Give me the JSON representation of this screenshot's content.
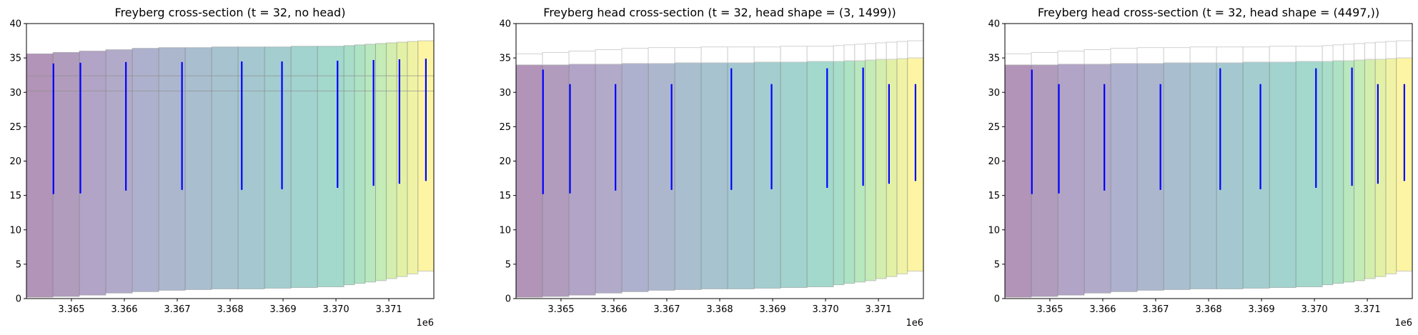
{
  "chart_data": [
    {
      "type": "area",
      "title": "Freyberg cross-section (t = 32, no head)",
      "xlabel": "",
      "ylabel": "",
      "x_offset_label": "1e6",
      "xlim": [
        3.36415,
        3.37185
      ],
      "ylim": [
        0,
        40
      ],
      "xticks": [
        3.365,
        3.366,
        3.367,
        3.368,
        3.369,
        3.37,
        3.371
      ],
      "xtick_labels": [
        "3.365",
        "3.366",
        "3.367",
        "3.368",
        "3.369",
        "3.370",
        "3.371"
      ],
      "yticks": [
        0,
        5,
        10,
        15,
        20,
        25,
        30,
        35,
        40
      ],
      "grid": false,
      "show_head_band": false,
      "head_top": 34.0,
      "column_edges": [
        3.36415,
        3.36465,
        3.36515,
        3.36565,
        3.36615,
        3.36665,
        3.36715,
        3.36765,
        3.36815,
        3.36865,
        3.36915,
        3.36965,
        3.37015,
        3.37035,
        3.37055,
        3.37075,
        3.37095,
        3.37115,
        3.37135,
        3.37155,
        3.37185
      ],
      "column_tops": [
        35.6,
        35.8,
        36.0,
        36.2,
        36.4,
        36.5,
        36.5,
        36.6,
        36.6,
        36.6,
        36.7,
        36.7,
        36.8,
        36.9,
        37.0,
        37.1,
        37.2,
        37.3,
        37.4,
        37.5
      ],
      "column_bottoms": [
        0.2,
        0.3,
        0.5,
        0.8,
        1.0,
        1.2,
        1.3,
        1.4,
        1.4,
        1.5,
        1.6,
        1.7,
        2.0,
        2.2,
        2.4,
        2.6,
        2.9,
        3.2,
        3.6,
        4.0
      ],
      "hlines": [
        30.2,
        32.4
      ],
      "wells": [
        {
          "x": 3.36466,
          "top": 34.2,
          "bottom": 15.2
        },
        {
          "x": 3.36517,
          "top": 34.3,
          "bottom": 15.3
        },
        {
          "x": 3.36603,
          "top": 34.4,
          "bottom": 15.7
        },
        {
          "x": 3.36709,
          "top": 34.4,
          "bottom": 15.8
        },
        {
          "x": 3.36822,
          "top": 34.5,
          "bottom": 15.8
        },
        {
          "x": 3.36898,
          "top": 34.5,
          "bottom": 15.9
        },
        {
          "x": 3.37003,
          "top": 34.6,
          "bottom": 16.1
        },
        {
          "x": 3.37071,
          "top": 34.7,
          "bottom": 16.4
        },
        {
          "x": 3.3712,
          "top": 34.8,
          "bottom": 16.7
        },
        {
          "x": 3.3717,
          "top": 34.9,
          "bottom": 17.1
        }
      ]
    },
    {
      "type": "area",
      "title": "Freyberg head cross-section (t = 32, head shape = (3, 1499))",
      "xlabel": "",
      "ylabel": "",
      "x_offset_label": "1e6",
      "xlim": [
        3.36415,
        3.37185
      ],
      "ylim": [
        0,
        40
      ],
      "xticks": [
        3.365,
        3.366,
        3.367,
        3.368,
        3.369,
        3.37,
        3.371
      ],
      "xtick_labels": [
        "3.365",
        "3.366",
        "3.367",
        "3.368",
        "3.369",
        "3.370",
        "3.371"
      ],
      "yticks": [
        0,
        5,
        10,
        15,
        20,
        25,
        30,
        35,
        40
      ],
      "grid": false,
      "show_head_band": true,
      "head_top": 34.0,
      "column_edges": [
        3.36415,
        3.36465,
        3.36515,
        3.36565,
        3.36615,
        3.36665,
        3.36715,
        3.36765,
        3.36815,
        3.36865,
        3.36915,
        3.36965,
        3.37015,
        3.37035,
        3.37055,
        3.37075,
        3.37095,
        3.37115,
        3.37135,
        3.37155,
        3.37185
      ],
      "column_tops": [
        35.6,
        35.8,
        36.0,
        36.2,
        36.4,
        36.5,
        36.5,
        36.6,
        36.6,
        36.6,
        36.7,
        36.7,
        36.8,
        36.9,
        37.0,
        37.1,
        37.2,
        37.3,
        37.4,
        37.5
      ],
      "column_bottoms": [
        0.2,
        0.3,
        0.5,
        0.8,
        1.0,
        1.2,
        1.3,
        1.4,
        1.4,
        1.5,
        1.6,
        1.7,
        2.0,
        2.2,
        2.4,
        2.6,
        2.9,
        3.2,
        3.6,
        4.0
      ],
      "column_heads": [
        34.0,
        34.0,
        34.1,
        34.1,
        34.2,
        34.2,
        34.3,
        34.3,
        34.3,
        34.4,
        34.4,
        34.5,
        34.5,
        34.6,
        34.6,
        34.7,
        34.8,
        34.8,
        34.9,
        35.0
      ],
      "hlines": [],
      "wells": [
        {
          "x": 3.36466,
          "top": 33.3,
          "bottom": 15.2
        },
        {
          "x": 3.36517,
          "top": 31.2,
          "bottom": 15.3
        },
        {
          "x": 3.36603,
          "top": 31.2,
          "bottom": 15.7
        },
        {
          "x": 3.36709,
          "top": 31.2,
          "bottom": 15.8
        },
        {
          "x": 3.36822,
          "top": 33.5,
          "bottom": 15.8
        },
        {
          "x": 3.36898,
          "top": 31.2,
          "bottom": 15.9
        },
        {
          "x": 3.37003,
          "top": 33.5,
          "bottom": 16.1
        },
        {
          "x": 3.37071,
          "top": 33.6,
          "bottom": 16.4
        },
        {
          "x": 3.3712,
          "top": 31.2,
          "bottom": 16.7
        },
        {
          "x": 3.3717,
          "top": 31.2,
          "bottom": 17.1
        }
      ]
    },
    {
      "type": "area",
      "title": "Freyberg head cross-section (t = 32, head shape = (4497,))",
      "xlabel": "",
      "ylabel": "",
      "x_offset_label": "1e6",
      "xlim": [
        3.36415,
        3.37185
      ],
      "ylim": [
        0,
        40
      ],
      "xticks": [
        3.365,
        3.366,
        3.367,
        3.368,
        3.369,
        3.37,
        3.371
      ],
      "xtick_labels": [
        "3.365",
        "3.366",
        "3.367",
        "3.368",
        "3.369",
        "3.370",
        "3.371"
      ],
      "yticks": [
        0,
        5,
        10,
        15,
        20,
        25,
        30,
        35,
        40
      ],
      "grid": false,
      "show_head_band": true,
      "head_top": 34.0,
      "column_edges": [
        3.36415,
        3.36465,
        3.36515,
        3.36565,
        3.36615,
        3.36665,
        3.36715,
        3.36765,
        3.36815,
        3.36865,
        3.36915,
        3.36965,
        3.37015,
        3.37035,
        3.37055,
        3.37075,
        3.37095,
        3.37115,
        3.37135,
        3.37155,
        3.37185
      ],
      "column_tops": [
        35.6,
        35.8,
        36.0,
        36.2,
        36.4,
        36.5,
        36.5,
        36.6,
        36.6,
        36.6,
        36.7,
        36.7,
        36.8,
        36.9,
        37.0,
        37.1,
        37.2,
        37.3,
        37.4,
        37.5
      ],
      "column_bottoms": [
        0.2,
        0.3,
        0.5,
        0.8,
        1.0,
        1.2,
        1.3,
        1.4,
        1.4,
        1.5,
        1.6,
        1.7,
        2.0,
        2.2,
        2.4,
        2.6,
        2.9,
        3.2,
        3.6,
        4.0
      ],
      "column_heads": [
        34.0,
        34.0,
        34.1,
        34.1,
        34.2,
        34.2,
        34.3,
        34.3,
        34.3,
        34.4,
        34.4,
        34.5,
        34.5,
        34.6,
        34.6,
        34.7,
        34.8,
        34.8,
        34.9,
        35.0
      ],
      "hlines": [],
      "wells": [
        {
          "x": 3.36466,
          "top": 33.3,
          "bottom": 15.2
        },
        {
          "x": 3.36517,
          "top": 31.2,
          "bottom": 15.3
        },
        {
          "x": 3.36603,
          "top": 31.2,
          "bottom": 15.7
        },
        {
          "x": 3.36709,
          "top": 31.2,
          "bottom": 15.8
        },
        {
          "x": 3.36822,
          "top": 33.5,
          "bottom": 15.8
        },
        {
          "x": 3.36898,
          "top": 31.2,
          "bottom": 15.9
        },
        {
          "x": 3.37003,
          "top": 33.5,
          "bottom": 16.1
        },
        {
          "x": 3.37071,
          "top": 33.6,
          "bottom": 16.4
        },
        {
          "x": 3.3712,
          "top": 31.2,
          "bottom": 16.7
        },
        {
          "x": 3.3717,
          "top": 31.2,
          "bottom": 17.1
        }
      ]
    }
  ],
  "colors": {
    "viridis": [
      "#440154",
      "#482878",
      "#3e4989",
      "#31688e",
      "#26828e",
      "#1f9e89",
      "#35b779",
      "#6ece58",
      "#b5de2b",
      "#fde725"
    ],
    "well": "#0000ff",
    "axis": "#000000",
    "cell_edge": "#8a8a8a",
    "outline": "#cccccc",
    "hline": "#8f8f8f"
  }
}
